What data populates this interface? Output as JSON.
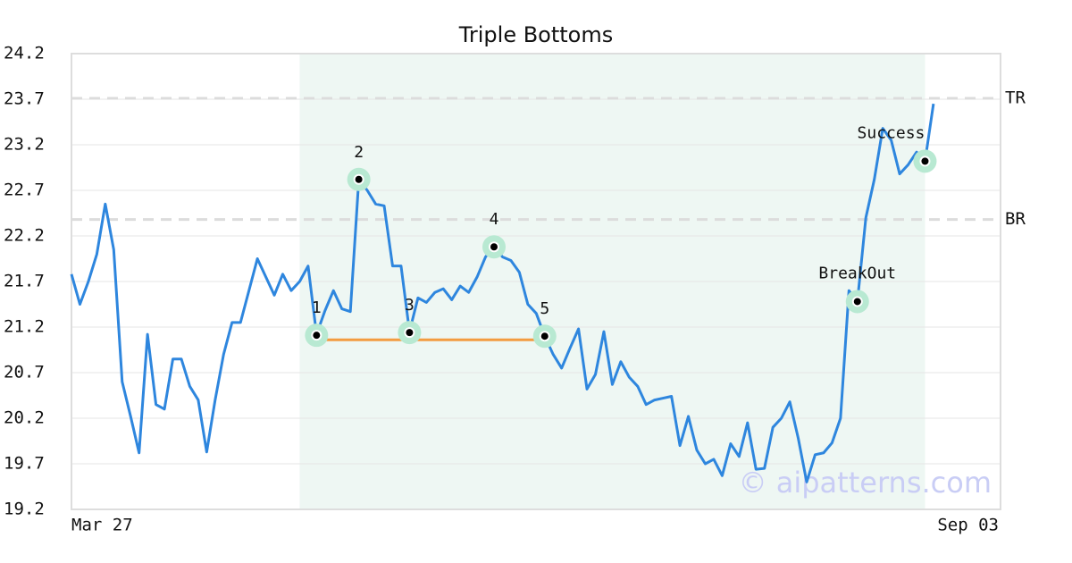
{
  "chart_data": {
    "type": "line",
    "title": "Triple Bottoms",
    "categories": [
      "Mar 27",
      null,
      null,
      null,
      null,
      null,
      null,
      null,
      null,
      null,
      null,
      null,
      null,
      null,
      null,
      null,
      null,
      null,
      null,
      null,
      null,
      null,
      null,
      null,
      null,
      null,
      null,
      null,
      null,
      null,
      null,
      null,
      null,
      null,
      null,
      null,
      null,
      null,
      null,
      null,
      null,
      null,
      null,
      null,
      null,
      null,
      null,
      null,
      null,
      null,
      null,
      null,
      null,
      null,
      null,
      null,
      null,
      null,
      null,
      null,
      null,
      null,
      null,
      null,
      null,
      null,
      null,
      null,
      null,
      null,
      null,
      null,
      null,
      null,
      null,
      null,
      null,
      null,
      null,
      null,
      null,
      null,
      null,
      null,
      null,
      null,
      null,
      null,
      null,
      null,
      null,
      null,
      null,
      null,
      null,
      null,
      null,
      null,
      null,
      null,
      null,
      null,
      "Sep 03"
    ],
    "values": [
      21.78,
      21.45,
      21.7,
      22.0,
      22.55,
      22.05,
      20.6,
      20.22,
      19.82,
      21.12,
      20.35,
      20.3,
      20.85,
      20.85,
      20.55,
      20.4,
      19.83,
      20.4,
      20.9,
      21.25,
      21.25,
      21.6,
      21.95,
      21.75,
      21.55,
      21.78,
      21.6,
      21.7,
      21.87,
      21.12,
      21.38,
      21.6,
      21.4,
      21.37,
      22.82,
      22.7,
      22.55,
      22.53,
      21.87,
      21.87,
      21.15,
      21.52,
      21.47,
      21.58,
      21.62,
      21.5,
      21.65,
      21.58,
      21.75,
      21.97,
      22.08,
      21.97,
      21.93,
      21.8,
      21.45,
      21.35,
      21.1,
      20.9,
      20.75,
      20.97,
      21.18,
      20.52,
      20.68,
      21.15,
      20.57,
      20.82,
      20.65,
      20.55,
      20.35,
      20.4,
      20.42,
      20.44,
      19.9,
      20.22,
      19.85,
      19.7,
      19.75,
      19.57,
      19.92,
      19.78,
      20.15,
      19.64,
      19.65,
      20.1,
      20.2,
      20.38,
      19.98,
      19.5,
      19.8,
      19.82,
      19.93,
      20.2,
      21.6,
      21.48,
      22.4,
      22.82,
      23.38,
      23.25,
      22.88,
      22.98,
      23.12,
      23.02,
      23.65
    ],
    "color": "#2e86de",
    "ylim": [
      19.2,
      24.2
    ],
    "yticks": [
      19.2,
      19.7,
      20.2,
      20.7,
      21.2,
      21.7,
      22.2,
      22.7,
      23.2,
      23.7,
      24.2
    ],
    "grid": true,
    "highlight": [
      27,
      101
    ],
    "levels": [
      {
        "label": "TR",
        "value": 23.71
      },
      {
        "label": "BR",
        "value": 22.38
      }
    ],
    "neckline": {
      "from": 29,
      "to": 56,
      "value": 21.06,
      "color": "#f39c40"
    },
    "points": [
      {
        "label": "1",
        "x": 29,
        "y": 21.11
      },
      {
        "label": "2",
        "x": 34,
        "y": 22.82
      },
      {
        "label": "3",
        "x": 40,
        "y": 21.14
      },
      {
        "label": "4",
        "x": 50,
        "y": 22.08
      },
      {
        "label": "5",
        "x": 56,
        "y": 21.1
      },
      {
        "label": "BreakOut",
        "x": 93,
        "y": 21.48
      },
      {
        "label": "Success",
        "x": 101,
        "y": 23.02
      }
    ],
    "watermark": "© aipatterns.com"
  }
}
